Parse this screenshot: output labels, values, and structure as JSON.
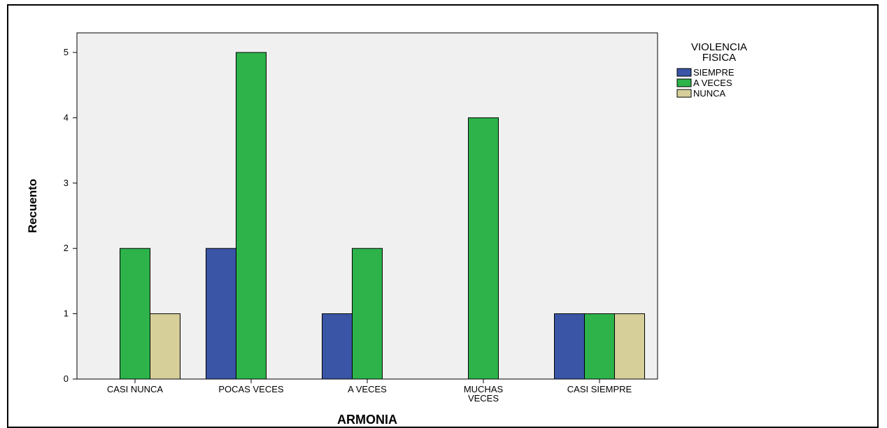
{
  "chart_data": {
    "type": "bar",
    "categories": [
      [
        "CASI NUNCA"
      ],
      [
        "POCAS VECES"
      ],
      [
        "A VECES"
      ],
      [
        "MUCHAS",
        "VECES"
      ],
      [
        "CASI SIEMPRE"
      ]
    ],
    "series": [
      {
        "name": "SIEMPRE",
        "values": [
          0,
          2,
          1,
          0,
          1
        ],
        "color": "#3a55a6"
      },
      {
        "name": "A VECES",
        "values": [
          2,
          5,
          2,
          4,
          1
        ],
        "color": "#2db34a"
      },
      {
        "name": "NUNCA",
        "values": [
          1,
          0,
          0,
          0,
          1
        ],
        "color": "#d6cf9a"
      }
    ],
    "ylim": [
      0,
      5
    ],
    "yticks": [
      "0",
      "1",
      "2",
      "3",
      "4",
      "5"
    ],
    "xlabel": "ARMONIA",
    "ylabel": "Recuento",
    "legend": {
      "title": [
        "VIOLENCIA",
        "FISICA"
      ],
      "placement": "right"
    },
    "grid": false,
    "plot_background": "#f0f0f0"
  }
}
